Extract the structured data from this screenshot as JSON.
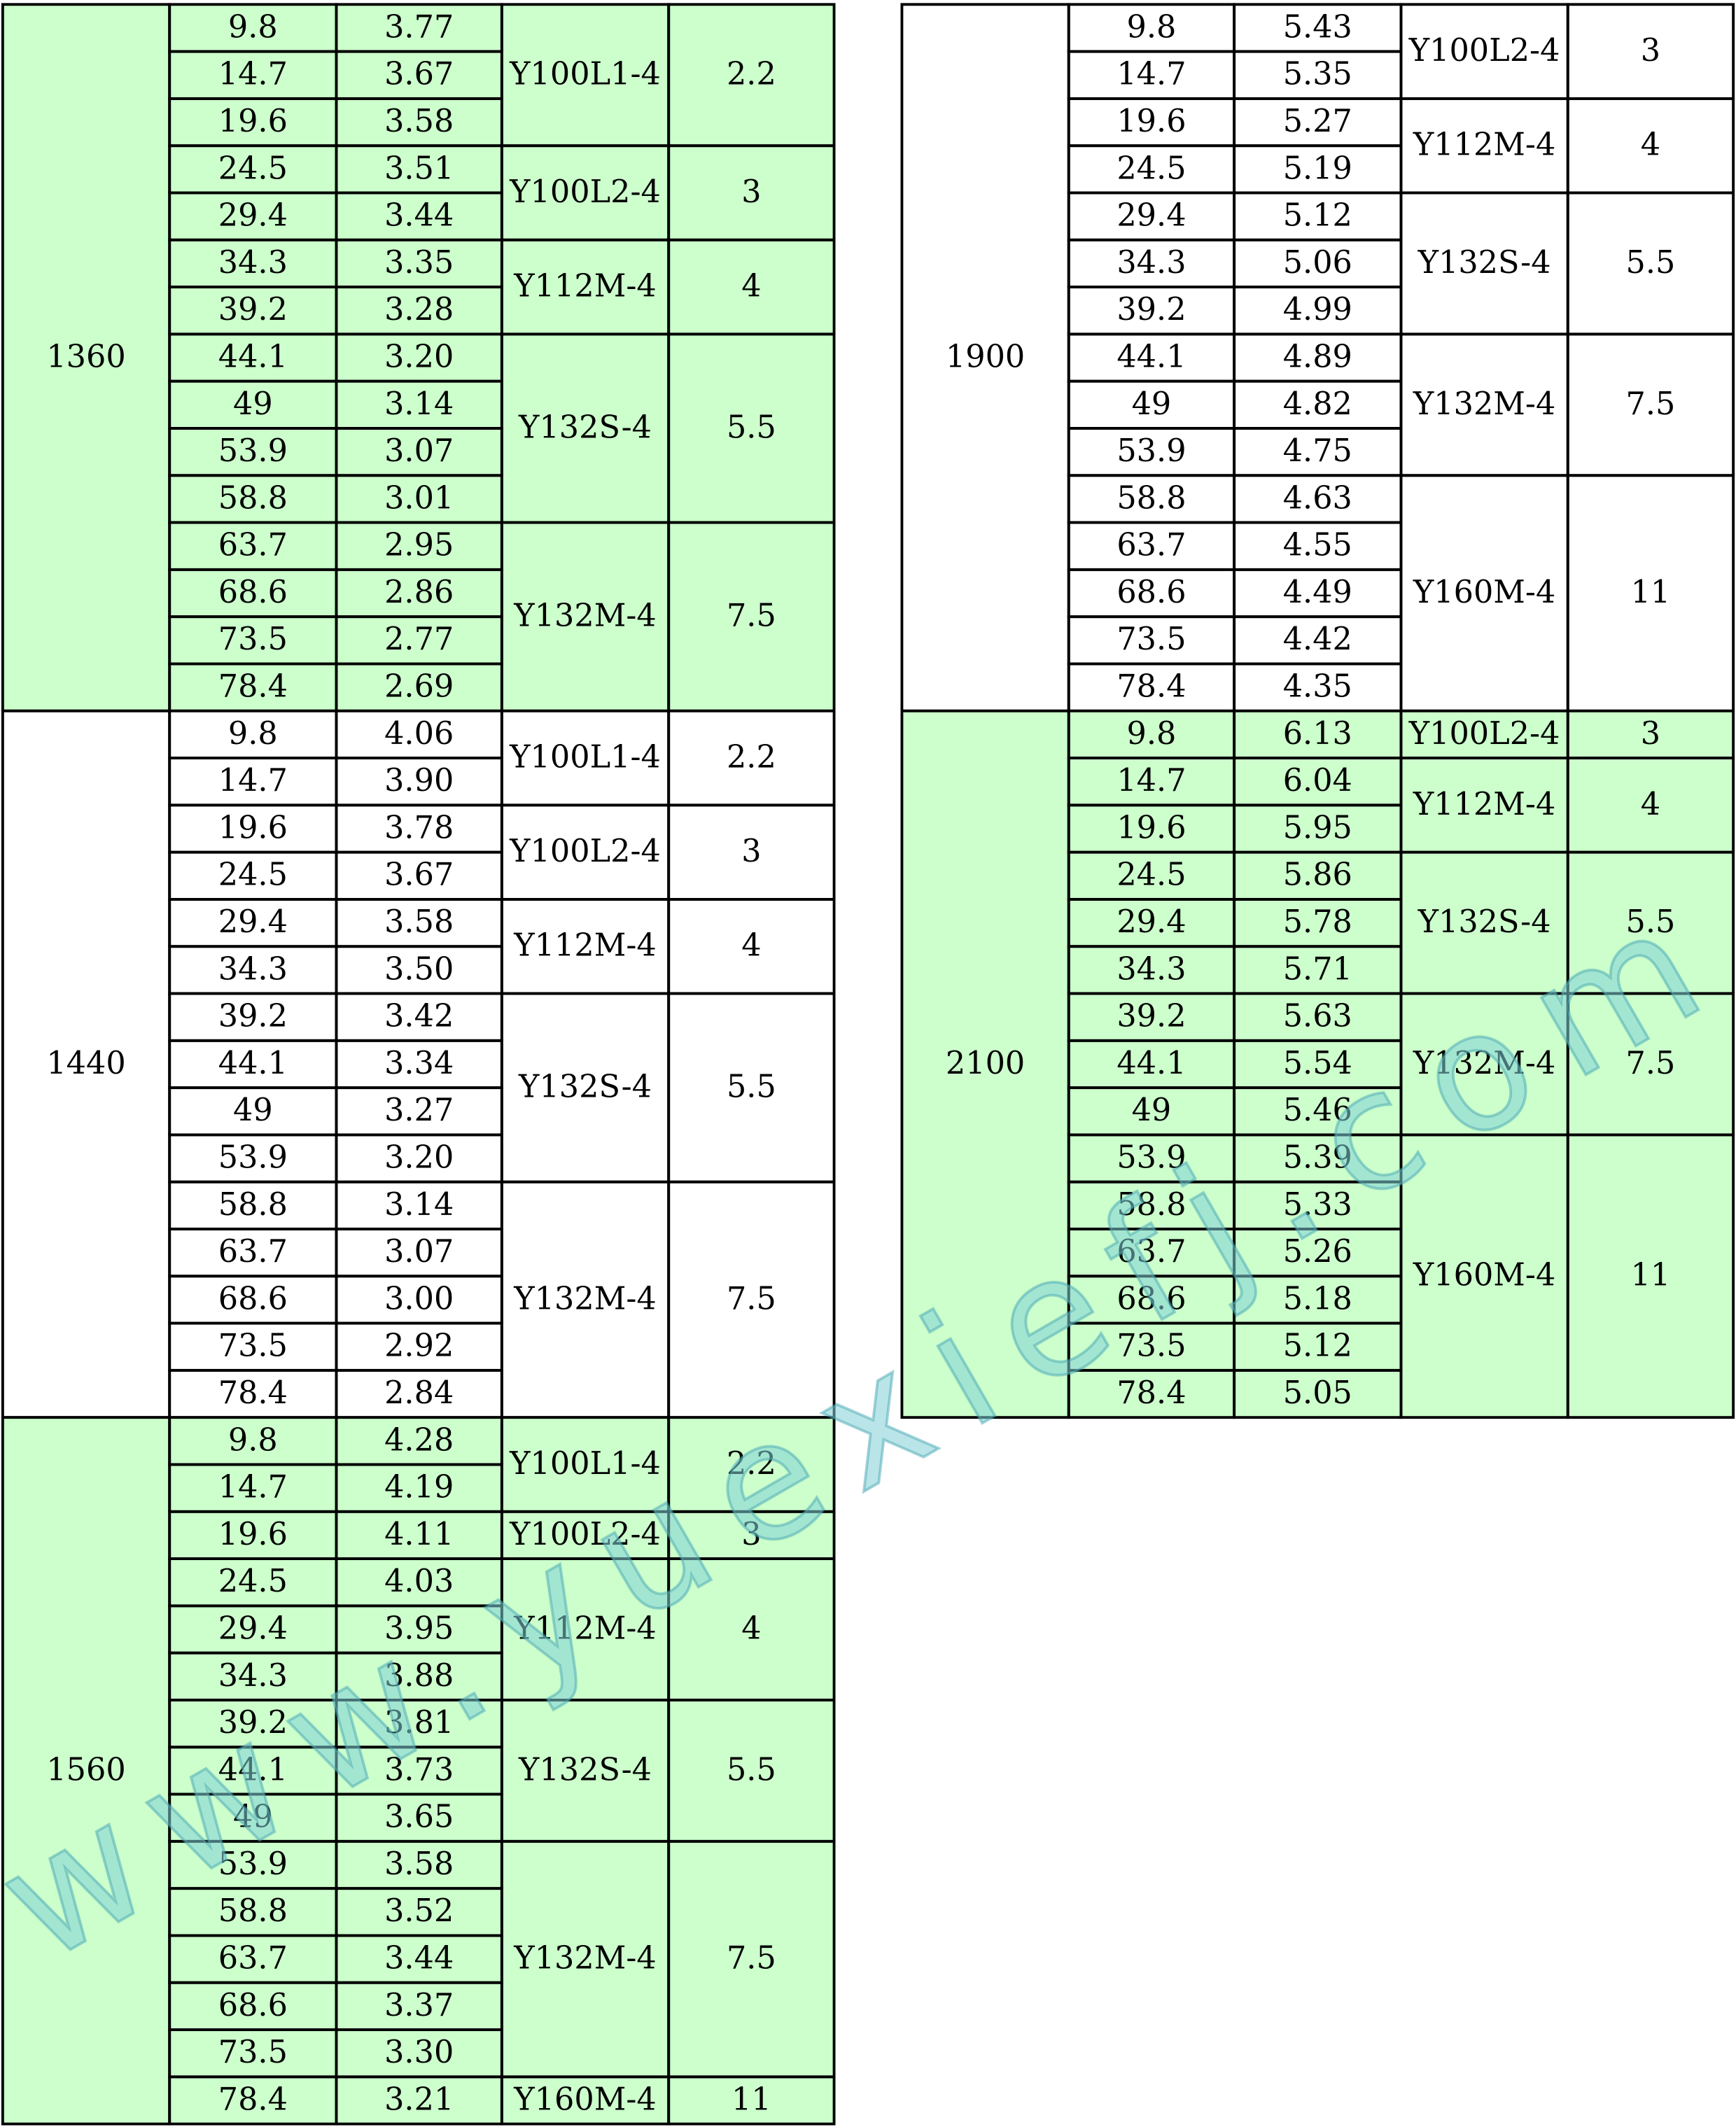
{
  "tables": [
    {
      "groups": [
        {
          "speed": "1360",
          "color": "#ccffcc",
          "motors": [
            {
              "model": "Y100L1-4",
              "power": "2.2",
              "rows": [
                [
                  "9.8",
                  "3.77"
                ],
                [
                  "14.7",
                  "3.67"
                ],
                [
                  "19.6",
                  "3.58"
                ]
              ]
            },
            {
              "model": "Y100L2-4",
              "power": "3",
              "rows": [
                [
                  "24.5",
                  "3.51"
                ],
                [
                  "29.4",
                  "3.44"
                ]
              ]
            },
            {
              "model": "Y112M-4",
              "power": "4",
              "rows": [
                [
                  "34.3",
                  "3.35"
                ],
                [
                  "39.2",
                  "3.28"
                ]
              ]
            },
            {
              "model": "Y132S-4",
              "power": "5.5",
              "rows": [
                [
                  "44.1",
                  "3.20"
                ],
                [
                  "49",
                  "3.14"
                ],
                [
                  "53.9",
                  "3.07"
                ],
                [
                  "58.8",
                  "3.01"
                ]
              ]
            },
            {
              "model": "Y132M-4",
              "power": "7.5",
              "rows": [
                [
                  "63.7",
                  "2.95"
                ],
                [
                  "68.6",
                  "2.86"
                ],
                [
                  "73.5",
                  "2.77"
                ],
                [
                  "78.4",
                  "2.69"
                ]
              ]
            }
          ]
        },
        {
          "speed": "1440",
          "color": "#ffffff",
          "motors": [
            {
              "model": "Y100L1-4",
              "power": "2.2",
              "rows": [
                [
                  "9.8",
                  "4.06"
                ],
                [
                  "14.7",
                  "3.90"
                ]
              ]
            },
            {
              "model": "Y100L2-4",
              "power": "3",
              "rows": [
                [
                  "19.6",
                  "3.78"
                ],
                [
                  "24.5",
                  "3.67"
                ]
              ]
            },
            {
              "model": "Y112M-4",
              "power": "4",
              "rows": [
                [
                  "29.4",
                  "3.58"
                ],
                [
                  "34.3",
                  "3.50"
                ]
              ]
            },
            {
              "model": "Y132S-4",
              "power": "5.5",
              "rows": [
                [
                  "39.2",
                  "3.42"
                ],
                [
                  "44.1",
                  "3.34"
                ],
                [
                  "49",
                  "3.27"
                ],
                [
                  "53.9",
                  "3.20"
                ]
              ]
            },
            {
              "model": "Y132M-4",
              "power": "7.5",
              "rows": [
                [
                  "58.8",
                  "3.14"
                ],
                [
                  "63.7",
                  "3.07"
                ],
                [
                  "68.6",
                  "3.00"
                ],
                [
                  "73.5",
                  "2.92"
                ],
                [
                  "78.4",
                  "2.84"
                ]
              ]
            }
          ]
        },
        {
          "speed": "1560",
          "color": "#ccffcc",
          "motors": [
            {
              "model": "Y100L1-4",
              "power": "2.2",
              "rows": [
                [
                  "9.8",
                  "4.28"
                ],
                [
                  "14.7",
                  "4.19"
                ]
              ]
            },
            {
              "model": "Y100L2-4",
              "power": "3",
              "rows": [
                [
                  "19.6",
                  "4.11"
                ]
              ]
            },
            {
              "model": "Y112M-4",
              "power": "4",
              "rows": [
                [
                  "24.5",
                  "4.03"
                ],
                [
                  "29.4",
                  "3.95"
                ],
                [
                  "34.3",
                  "3.88"
                ]
              ]
            },
            {
              "model": "Y132S-4",
              "power": "5.5",
              "rows": [
                [
                  "39.2",
                  "3.81"
                ],
                [
                  "44.1",
                  "3.73"
                ],
                [
                  "49",
                  "3.65"
                ]
              ]
            },
            {
              "model": "Y132M-4",
              "power": "7.5",
              "rows": [
                [
                  "53.9",
                  "3.58"
                ],
                [
                  "58.8",
                  "3.52"
                ],
                [
                  "63.7",
                  "3.44"
                ],
                [
                  "68.6",
                  "3.37"
                ],
                [
                  "73.5",
                  "3.30"
                ]
              ]
            },
            {
              "model": "Y160M-4",
              "power": "11",
              "rows": [
                [
                  "78.4",
                  "3.21"
                ]
              ]
            }
          ]
        }
      ]
    },
    {
      "groups": [
        {
          "speed": "1900",
          "color": "#ffffff",
          "motors": [
            {
              "model": "Y100L2-4",
              "power": "3",
              "rows": [
                [
                  "9.8",
                  "5.43"
                ],
                [
                  "14.7",
                  "5.35"
                ]
              ]
            },
            {
              "model": "Y112M-4",
              "power": "4",
              "rows": [
                [
                  "19.6",
                  "5.27"
                ],
                [
                  "24.5",
                  "5.19"
                ]
              ]
            },
            {
              "model": "Y132S-4",
              "power": "5.5",
              "rows": [
                [
                  "29.4",
                  "5.12"
                ],
                [
                  "34.3",
                  "5.06"
                ],
                [
                  "39.2",
                  "4.99"
                ]
              ]
            },
            {
              "model": "Y132M-4",
              "power": "7.5",
              "rows": [
                [
                  "44.1",
                  "4.89"
                ],
                [
                  "49",
                  "4.82"
                ],
                [
                  "53.9",
                  "4.75"
                ]
              ]
            },
            {
              "model": "Y160M-4",
              "power": "11",
              "rows": [
                [
                  "58.8",
                  "4.63"
                ],
                [
                  "63.7",
                  "4.55"
                ],
                [
                  "68.6",
                  "4.49"
                ],
                [
                  "73.5",
                  "4.42"
                ],
                [
                  "78.4",
                  "4.35"
                ]
              ]
            }
          ]
        },
        {
          "speed": "2100",
          "color": "#ccffcc",
          "motors": [
            {
              "model": "Y100L2-4",
              "power": "3",
              "rows": [
                [
                  "9.8",
                  "6.13"
                ]
              ]
            },
            {
              "model": "Y112M-4",
              "power": "4",
              "rows": [
                [
                  "14.7",
                  "6.04"
                ],
                [
                  "19.6",
                  "5.95"
                ]
              ]
            },
            {
              "model": "Y132S-4",
              "power": "5.5",
              "rows": [
                [
                  "24.5",
                  "5.86"
                ],
                [
                  "29.4",
                  "5.78"
                ],
                [
                  "34.3",
                  "5.71"
                ]
              ]
            },
            {
              "model": "Y132M-4",
              "power": "7.5",
              "rows": [
                [
                  "39.2",
                  "5.63"
                ],
                [
                  "44.1",
                  "5.54"
                ],
                [
                  "49",
                  "5.46"
                ]
              ]
            },
            {
              "model": "Y160M-4",
              "power": "11",
              "rows": [
                [
                  "53.9",
                  "5.39"
                ],
                [
                  "58.8",
                  "5.33"
                ],
                [
                  "63.7",
                  "5.26"
                ],
                [
                  "68.6",
                  "5.18"
                ],
                [
                  "73.5",
                  "5.12"
                ],
                [
                  "78.4",
                  "5.05"
                ]
              ]
            }
          ]
        }
      ]
    }
  ],
  "watermark": "www.yuexiefj.com"
}
